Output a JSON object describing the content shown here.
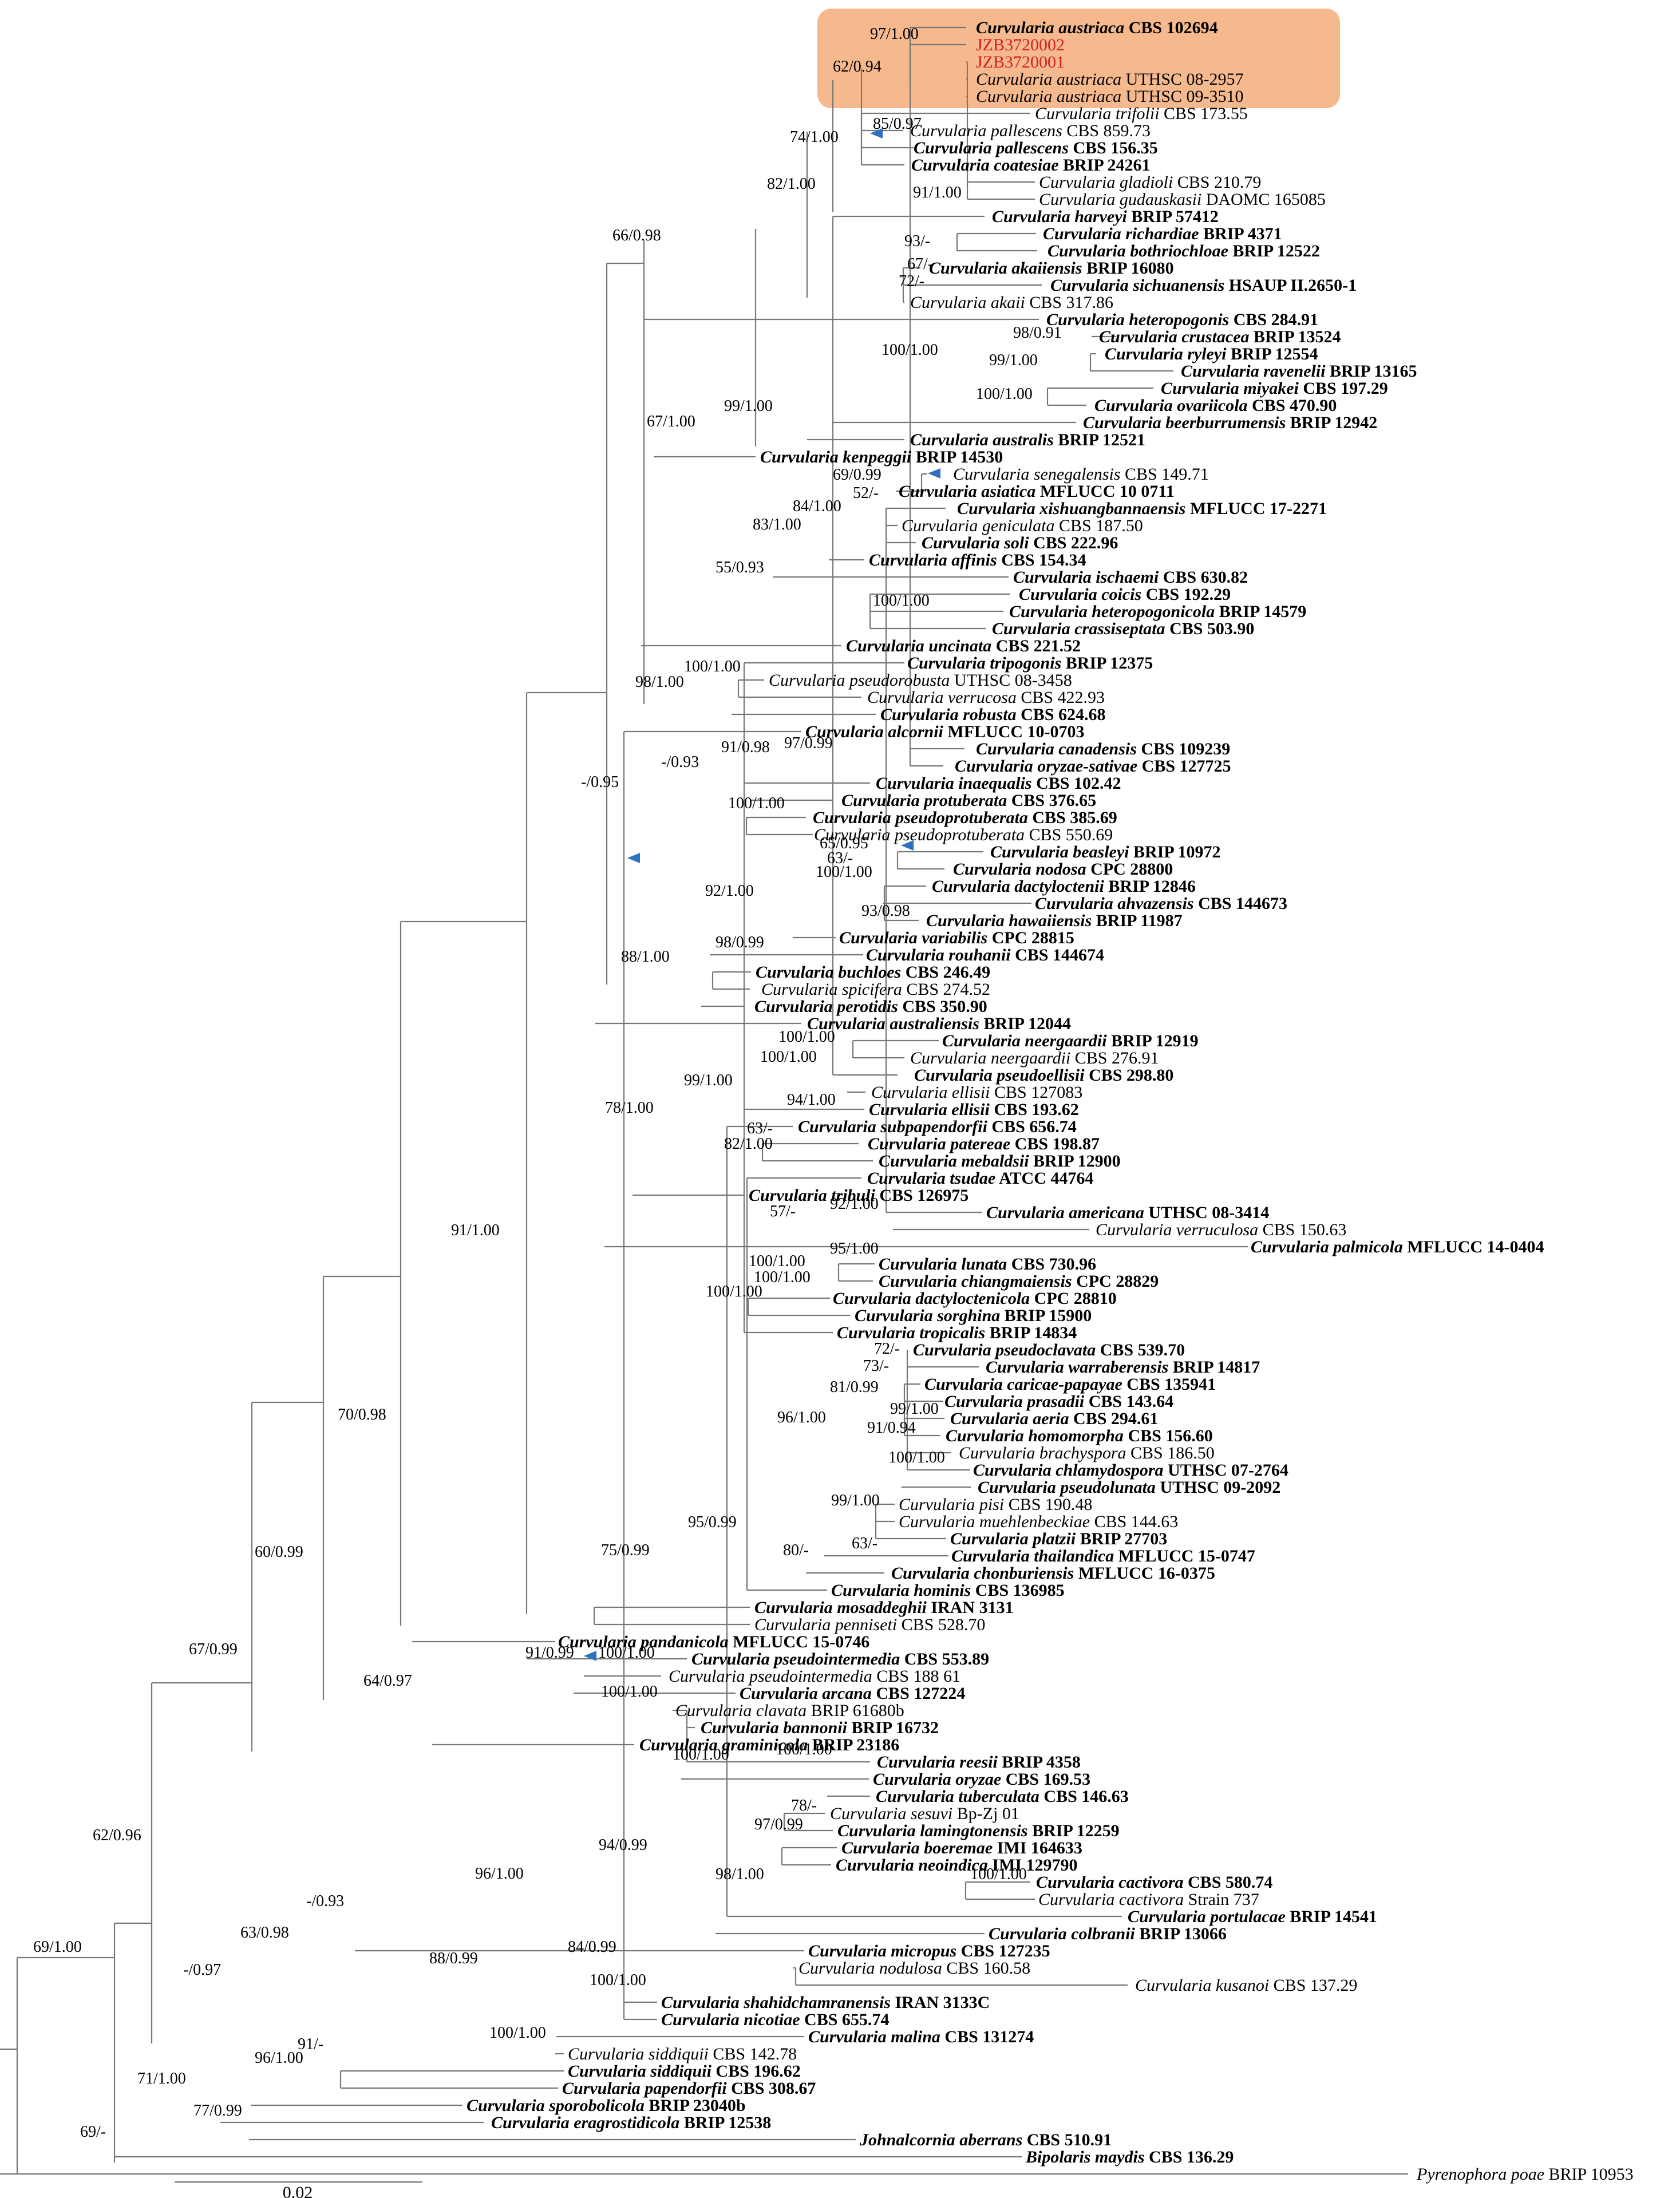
{
  "figure": {
    "scale_label": "0.02",
    "colors": {
      "branch": "#777777",
      "highlight": "#f6b98e",
      "highlight_text": "#d42020",
      "arrow": "#2f6fc0"
    }
  },
  "taxa": [
    {
      "genus": "Curvularia",
      "epithet": "austriaca",
      "strain": "CBS 102694",
      "type": true
    },
    {
      "genus": "",
      "epithet": "",
      "strain": "JZB3720002",
      "type": false,
      "red": true
    },
    {
      "genus": "",
      "epithet": "",
      "strain": "JZB3720001",
      "type": false,
      "red": true
    },
    {
      "genus": "Curvularia",
      "epithet": "austriaca",
      "strain": "UTHSC 08-2957",
      "type": false
    },
    {
      "genus": "Curvularia",
      "epithet": "austriaca",
      "strain": "UTHSC 09-3510",
      "type": false
    },
    {
      "genus": "Curvularia",
      "epithet": "trifolii",
      "strain": "CBS 173.55",
      "type": false
    },
    {
      "genus": "Curvularia",
      "epithet": "pallescens",
      "strain": "CBS 859.73",
      "type": false
    },
    {
      "genus": "Curvularia",
      "epithet": "pallescens",
      "strain": "CBS 156.35",
      "type": true
    },
    {
      "genus": "Curvularia",
      "epithet": "coatesiae",
      "strain": "BRIP 24261",
      "type": true
    },
    {
      "genus": "Curvularia",
      "epithet": "gladioli",
      "strain": "CBS 210.79",
      "type": false
    },
    {
      "genus": "Curvularia",
      "epithet": "gudauskasii",
      "strain": "DAOMC 165085",
      "type": false
    },
    {
      "genus": "Curvularia",
      "epithet": "harveyi",
      "strain": "BRIP 57412",
      "type": true
    },
    {
      "genus": "Curvularia",
      "epithet": "richardiae",
      "strain": "BRIP 4371",
      "type": true
    },
    {
      "genus": "Curvularia",
      "epithet": "bothriochloae",
      "strain": "BRIP 12522",
      "type": true
    },
    {
      "genus": "Curvularia",
      "epithet": "akaiiensis",
      "strain": "BRIP 16080",
      "type": true
    },
    {
      "genus": "Curvularia",
      "epithet": "sichuanensis",
      "strain": "HSAUP II.2650-1",
      "type": true
    },
    {
      "genus": "Curvularia",
      "epithet": "akaii",
      "strain": "CBS 317.86",
      "type": false
    },
    {
      "genus": "Curvularia",
      "epithet": "heteropogonis",
      "strain": "CBS 284.91",
      "type": true
    },
    {
      "genus": "Curvularia",
      "epithet": "crustacea",
      "strain": "BRIP 13524",
      "type": true
    },
    {
      "genus": "Curvularia",
      "epithet": "ryleyi",
      "strain": "BRIP 12554",
      "type": true
    },
    {
      "genus": "Curvularia",
      "epithet": "ravenelii",
      "strain": "BRIP 13165",
      "type": true
    },
    {
      "genus": "Curvularia",
      "epithet": "miyakei",
      "strain": "CBS 197.29",
      "type": true
    },
    {
      "genus": "Curvularia",
      "epithet": "ovariicola",
      "strain": "CBS 470.90",
      "type": true
    },
    {
      "genus": "Curvularia",
      "epithet": "beerburrumensis",
      "strain": "BRIP 12942",
      "type": true
    },
    {
      "genus": "Curvularia",
      "epithet": "australis",
      "strain": "BRIP 12521",
      "type": true
    },
    {
      "genus": "Curvularia",
      "epithet": "kenpeggii",
      "strain": "BRIP 14530",
      "type": true
    },
    {
      "genus": "Curvularia",
      "epithet": "senegalensis",
      "strain": "CBS 149.71",
      "type": false
    },
    {
      "genus": "Curvularia",
      "epithet": "asiatica",
      "strain": "MFLUCC 10 0711",
      "type": true
    },
    {
      "genus": "Curvularia",
      "epithet": "xishuangbannaensis",
      "strain": "MFLUCC 17-2271",
      "type": true
    },
    {
      "genus": "Curvularia",
      "epithet": "geniculata",
      "strain": "CBS 187.50",
      "type": false
    },
    {
      "genus": "Curvularia",
      "epithet": "soli",
      "strain": "CBS 222.96",
      "type": true
    },
    {
      "genus": "Curvularia",
      "epithet": "affinis",
      "strain": "CBS 154.34",
      "type": true
    },
    {
      "genus": "Curvularia",
      "epithet": "ischaemi",
      "strain": "CBS 630.82",
      "type": true
    },
    {
      "genus": "Curvularia",
      "epithet": "coicis",
      "strain": "CBS 192.29",
      "type": true
    },
    {
      "genus": "Curvularia",
      "epithet": "heteropogonicola",
      "strain": "BRIP 14579",
      "type": true
    },
    {
      "genus": "Curvularia",
      "epithet": "crassiseptata",
      "strain": "CBS 503.90",
      "type": true
    },
    {
      "genus": "Curvularia",
      "epithet": "uncinata",
      "strain": "CBS 221.52",
      "type": true
    },
    {
      "genus": "Curvularia",
      "epithet": "tripogonis",
      "strain": "BRIP 12375",
      "type": true
    },
    {
      "genus": "Curvularia",
      "epithet": "pseudorobusta",
      "strain": "UTHSC 08-3458",
      "type": false
    },
    {
      "genus": "Curvularia",
      "epithet": "verrucosa",
      "strain": "CBS 422.93",
      "type": false
    },
    {
      "genus": "Curvularia",
      "epithet": "robusta",
      "strain": "CBS 624.68",
      "type": true
    },
    {
      "genus": "Curvularia",
      "epithet": "alcornii",
      "strain": "MFLUCC 10-0703",
      "type": true
    },
    {
      "genus": "Curvularia",
      "epithet": "canadensis",
      "strain": "CBS 109239",
      "type": true
    },
    {
      "genus": "Curvularia",
      "epithet": "oryzae-sativae",
      "strain": "CBS 127725",
      "type": true
    },
    {
      "genus": "Curvularia",
      "epithet": "inaequalis",
      "strain": "CBS 102.42",
      "type": true
    },
    {
      "genus": "Curvularia",
      "epithet": "protuberata",
      "strain": "CBS 376.65",
      "type": true
    },
    {
      "genus": "Curvularia",
      "epithet": "pseudoprotuberata",
      "strain": "CBS 385.69",
      "type": true
    },
    {
      "genus": "Curvularia",
      "epithet": "pseudoprotuberata",
      "strain": "CBS 550.69",
      "type": false
    },
    {
      "genus": "Curvularia",
      "epithet": "beasleyi",
      "strain": "BRIP 10972",
      "type": true
    },
    {
      "genus": "Curvularia",
      "epithet": "nodosa",
      "strain": "CPC 28800",
      "type": true
    },
    {
      "genus": "Curvularia",
      "epithet": "dactyloctenii",
      "strain": "BRIP 12846",
      "type": true
    },
    {
      "genus": "Curvularia",
      "epithet": "ahvazensis",
      "strain": "CBS 144673",
      "type": true
    },
    {
      "genus": "Curvularia",
      "epithet": "hawaiiensis",
      "strain": "BRIP 11987",
      "type": true
    },
    {
      "genus": "Curvularia",
      "epithet": "variabilis",
      "strain": "CPC 28815",
      "type": true
    },
    {
      "genus": "Curvularia",
      "epithet": "rouhanii",
      "strain": "CBS 144674",
      "type": true
    },
    {
      "genus": "Curvularia",
      "epithet": "buchloes",
      "strain": "CBS 246.49",
      "type": true
    },
    {
      "genus": "Curvularia",
      "epithet": "spicifera",
      "strain": "CBS 274.52",
      "type": false
    },
    {
      "genus": "Curvularia",
      "epithet": "perotidis",
      "strain": "CBS 350.90",
      "type": true
    },
    {
      "genus": "Curvularia",
      "epithet": "australiensis",
      "strain": "BRIP 12044",
      "type": true
    },
    {
      "genus": "Curvularia",
      "epithet": "neergaardii",
      "strain": "BRIP 12919",
      "type": true
    },
    {
      "genus": "Curvularia",
      "epithet": "neergaardii",
      "strain": "CBS 276.91",
      "type": false
    },
    {
      "genus": "Curvularia",
      "epithet": "pseudoellisii",
      "strain": "CBS 298.80",
      "type": true
    },
    {
      "genus": "Curvularia",
      "epithet": "ellisii",
      "strain": "CBS 127083",
      "type": false
    },
    {
      "genus": "Curvularia",
      "epithet": "ellisii",
      "strain": "CBS 193.62",
      "type": true
    },
    {
      "genus": "Curvularia",
      "epithet": "subpapendorfii",
      "strain": "CBS 656.74",
      "type": true
    },
    {
      "genus": "Curvularia",
      "epithet": "patereae",
      "strain": "CBS 198.87",
      "type": true
    },
    {
      "genus": "Curvularia",
      "epithet": "mebaldsii",
      "strain": "BRIP 12900",
      "type": true
    },
    {
      "genus": "Curvularia",
      "epithet": "tsudae",
      "strain": "ATCC 44764",
      "type": true
    },
    {
      "genus": "Curvularia",
      "epithet": "tribuli",
      "strain": "CBS 126975",
      "type": true
    },
    {
      "genus": "Curvularia",
      "epithet": "americana",
      "strain": "UTHSC 08-3414",
      "type": true
    },
    {
      "genus": "Curvularia",
      "epithet": "verruculosa",
      "strain": "CBS 150.63",
      "type": false
    },
    {
      "genus": "Curvularia",
      "epithet": "palmicola",
      "strain": "MFLUCC 14-0404",
      "type": true
    },
    {
      "genus": "Curvularia",
      "epithet": "lunata",
      "strain": "CBS 730.96",
      "type": true
    },
    {
      "genus": "Curvularia",
      "epithet": "chiangmaiensis",
      "strain": "CPC 28829",
      "type": true
    },
    {
      "genus": "Curvularia",
      "epithet": "dactyloctenicola",
      "strain": "CPC 28810",
      "type": true
    },
    {
      "genus": "Curvularia",
      "epithet": "sorghina",
      "strain": "BRIP 15900",
      "type": true
    },
    {
      "genus": "Curvularia",
      "epithet": "tropicalis",
      "strain": "BRIP 14834",
      "type": true
    },
    {
      "genus": "Curvularia",
      "epithet": "pseudoclavata",
      "strain": "CBS 539.70",
      "type": true
    },
    {
      "genus": "Curvularia",
      "epithet": "warraberensis",
      "strain": "BRIP 14817",
      "type": true
    },
    {
      "genus": "Curvularia",
      "epithet": "caricae-papayae",
      "strain": "CBS 135941",
      "type": true
    },
    {
      "genus": "Curvularia",
      "epithet": "prasadii",
      "strain": "CBS 143.64",
      "type": true
    },
    {
      "genus": "Curvularia",
      "epithet": "aeria",
      "strain": "CBS 294.61",
      "type": true
    },
    {
      "genus": "Curvularia",
      "epithet": "homomorpha",
      "strain": "CBS 156.60",
      "type": true
    },
    {
      "genus": "Curvularia",
      "epithet": "brachyspora",
      "strain": "CBS 186.50",
      "type": false
    },
    {
      "genus": "Curvularia",
      "epithet": "chlamydospora",
      "strain": "UTHSC 07-2764",
      "type": true
    },
    {
      "genus": "Curvularia",
      "epithet": "pseudolunata",
      "strain": "UTHSC 09-2092",
      "type": true
    },
    {
      "genus": "Curvularia",
      "epithet": "pisi",
      "strain": "CBS 190.48",
      "type": false
    },
    {
      "genus": "Curvularia",
      "epithet": "muehlenbeckiae",
      "strain": "CBS 144.63",
      "type": false
    },
    {
      "genus": "Curvularia",
      "epithet": "platzii",
      "strain": "BRIP 27703",
      "type": true
    },
    {
      "genus": "Curvularia",
      "epithet": "thailandica",
      "strain": "MFLUCC 15-0747",
      "type": true
    },
    {
      "genus": "Curvularia",
      "epithet": "chonburiensis",
      "strain": "MFLUCC 16-0375",
      "type": true
    },
    {
      "genus": "Curvularia",
      "epithet": "hominis",
      "strain": "CBS 136985",
      "type": true
    },
    {
      "genus": "Curvularia",
      "epithet": "mosaddeghii",
      "strain": "IRAN 3131",
      "type": true
    },
    {
      "genus": "Curvularia",
      "epithet": "penniseti",
      "strain": "CBS 528.70",
      "type": false
    },
    {
      "genus": "Curvularia",
      "epithet": "pandanicola",
      "strain": "MFLUCC 15-0746",
      "type": true
    },
    {
      "genus": "Curvularia",
      "epithet": "pseudointermedia",
      "strain": "CBS 553.89",
      "type": true
    },
    {
      "genus": "Curvularia",
      "epithet": "pseudointermedia",
      "strain": "CBS 188 61",
      "type": false
    },
    {
      "genus": "Curvularia",
      "epithet": "arcana",
      "strain": "CBS 127224",
      "type": true
    },
    {
      "genus": "Curvularia",
      "epithet": "clavata",
      "strain": "BRIP 61680b",
      "type": false
    },
    {
      "genus": "Curvularia",
      "epithet": "bannonii",
      "strain": "BRIP 16732",
      "type": true
    },
    {
      "genus": "Curvularia",
      "epithet": "graminicola",
      "strain": "BRIP 23186",
      "type": true
    },
    {
      "genus": "Curvularia",
      "epithet": "reesii",
      "strain": "BRIP 4358",
      "type": true
    },
    {
      "genus": "Curvularia",
      "epithet": "oryzae",
      "strain": "CBS 169.53",
      "type": true
    },
    {
      "genus": "Curvularia",
      "epithet": "tuberculata",
      "strain": "CBS 146.63",
      "type": true
    },
    {
      "genus": "Curvularia",
      "epithet": "sesuvi",
      "strain": "Bp-Zj 01",
      "type": false
    },
    {
      "genus": "Curvularia",
      "epithet": "lamingtonensis",
      "strain": "BRIP 12259",
      "type": true
    },
    {
      "genus": "Curvularia",
      "epithet": "boeremae",
      "strain": "IMI 164633",
      "type": true
    },
    {
      "genus": "Curvularia",
      "epithet": "neoindica",
      "strain": "IMI 129790",
      "type": true
    },
    {
      "genus": "Curvularia",
      "epithet": "cactivora",
      "strain": "CBS 580.74",
      "type": true
    },
    {
      "genus": "Curvularia",
      "epithet": "cactivora",
      "strain": "Strain 737",
      "type": false
    },
    {
      "genus": "Curvularia",
      "epithet": "portulacae",
      "strain": "BRIP 14541",
      "type": true
    },
    {
      "genus": "Curvularia",
      "epithet": "colbranii",
      "strain": "BRIP 13066",
      "type": true
    },
    {
      "genus": "Curvularia",
      "epithet": "micropus",
      "strain": "CBS 127235",
      "type": true
    },
    {
      "genus": "Curvularia",
      "epithet": "nodulosa",
      "strain": "CBS 160.58",
      "type": false
    },
    {
      "genus": "Curvularia",
      "epithet": "kusanoi",
      "strain": "CBS 137.29",
      "type": false
    },
    {
      "genus": "Curvularia",
      "epithet": "shahidchamranensis",
      "strain": "IRAN 3133C",
      "type": true
    },
    {
      "genus": "Curvularia",
      "epithet": "nicotiae",
      "strain": "CBS 655.74",
      "type": true
    },
    {
      "genus": "Curvularia",
      "epithet": "malina",
      "strain": "CBS 131274",
      "type": true
    },
    {
      "genus": "Curvularia",
      "epithet": "siddiquii",
      "strain": "CBS 142.78",
      "type": false
    },
    {
      "genus": "Curvularia",
      "epithet": "siddiquii",
      "strain": "CBS 196.62",
      "type": true
    },
    {
      "genus": "Curvularia",
      "epithet": "papendorfii",
      "strain": "CBS 308.67",
      "type": true
    },
    {
      "genus": "Curvularia",
      "epithet": "sporobolicola",
      "strain": "BRIP 23040b",
      "type": true
    },
    {
      "genus": "Curvularia",
      "epithet": "eragrostidicola",
      "strain": "BRIP 12538",
      "type": true
    },
    {
      "genus": "Johnalcornia",
      "epithet": "aberrans",
      "strain": "CBS 510.91",
      "type": true
    },
    {
      "genus": "Bipolaris",
      "epithet": "maydis",
      "strain": "CBS 136.29",
      "type": true
    },
    {
      "genus": "Pyrenophora",
      "epithet": "poae",
      "strain": "BRIP 10953",
      "type": false
    }
  ],
  "supports": [
    "97/1.00",
    "62/0.94",
    "85/0.97",
    "74/1.00",
    "82/1.00",
    "91/1.00",
    "66/0.98",
    "93/-",
    "67/-",
    "72/-",
    "98/0.91",
    "99/1.00",
    "100/1.00",
    "100/1.00",
    "99/1.00",
    "67/1.00",
    "69/0.99",
    "52/-",
    "84/1.00",
    "83/1.00",
    "55/0.93",
    "100/1.00",
    "100/1.00",
    "98/1.00",
    "97/0.99",
    "91/0.98",
    "-/0.93",
    "-/0.95",
    "100/1.00",
    "65/0.95",
    "63/-",
    "100/1.00",
    "93/0.98",
    "92/1.00",
    "98/0.99",
    "88/1.00",
    "100/1.00",
    "100/1.00",
    "94/1.00",
    "99/1.00",
    "63/-",
    "82/1.00",
    "78/1.00",
    "92/1.00",
    "57/-",
    "95/1.00",
    "100/1.00",
    "100/1.00",
    "100/1.00",
    "72/-",
    "73/-",
    "81/0.99",
    "99/1.00",
    "91/0.94",
    "100/1.00",
    "96/1.00",
    "99/1.00",
    "63/-",
    "80/-",
    "95/0.99",
    "75/0.99",
    "91/1.00",
    "70/0.98",
    "91/0.99",
    "100/1.00",
    "100/1.00",
    "64/0.97",
    "60/0.99",
    "100/1.00",
    "100/1.00",
    "67/0.99",
    "78/-",
    "97/0.99",
    "94/0.99",
    "100/1.00",
    "98/1.00",
    "96/1.00",
    "-/0.93",
    "84/0.99",
    "88/0.99",
    "100/1.00",
    "63/0.98",
    "-/0.97",
    "100/1.00",
    "91/-",
    "96/1.00",
    "71/1.00",
    "77/0.99",
    "62/0.96",
    "69/1.00",
    "69/-"
  ]
}
